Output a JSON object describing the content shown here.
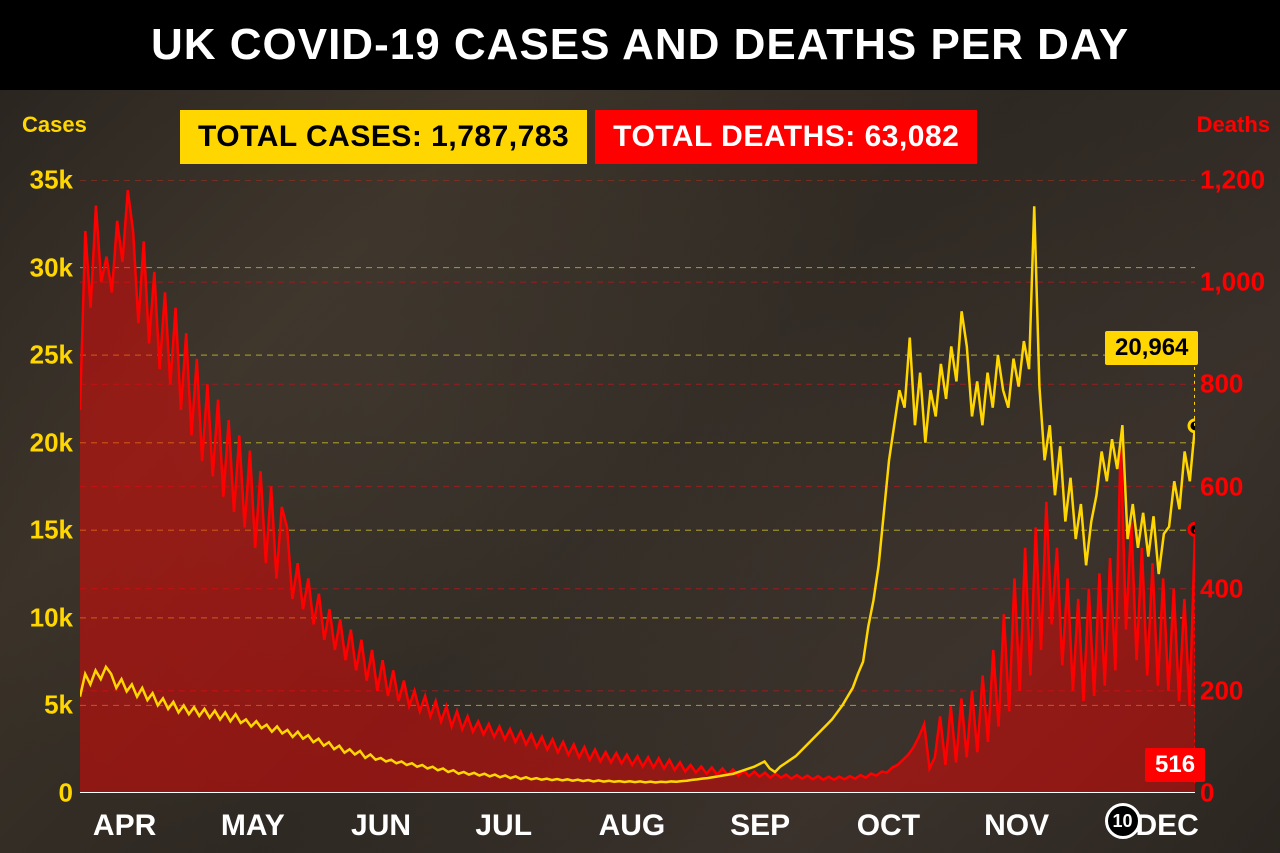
{
  "title": "UK COVID-19 CASES AND DEATHS PER DAY",
  "badges": {
    "cases_label": "TOTAL CASES: 1,787,783",
    "deaths_label": "TOTAL DEATHS: 63,082"
  },
  "axis_labels": {
    "left": "Cases",
    "right": "Deaths"
  },
  "callouts": {
    "cases": {
      "value": "20,964",
      "y_cases": 20964
    },
    "deaths": {
      "value": "516",
      "y_deaths": 516
    }
  },
  "date_marker": "10",
  "chart": {
    "type": "dual-axis-line",
    "background_color": "#2e2822",
    "title_fontsize": 44,
    "x_months": [
      "APR",
      "MAY",
      "JUN",
      "JUL",
      "AUG",
      "SEP",
      "OCT",
      "NOV",
      "DEC"
    ],
    "x_month_positions": [
      0.04,
      0.155,
      0.27,
      0.38,
      0.495,
      0.61,
      0.725,
      0.84,
      0.975
    ],
    "left_axis": {
      "color": "#ffd600",
      "ylim": [
        0,
        35000
      ],
      "ticks": [
        0,
        5000,
        10000,
        15000,
        20000,
        25000,
        30000,
        35000
      ],
      "tick_labels": [
        "0",
        "5k",
        "10k",
        "15k",
        "20k",
        "25k",
        "30k",
        "35k"
      ],
      "grid_color": "#9a8f2a",
      "grid_dash": "6,5"
    },
    "right_axis": {
      "color": "#ff0000",
      "ylim": [
        0,
        1200
      ],
      "ticks": [
        0,
        200,
        400,
        600,
        800,
        1000,
        1200
      ],
      "tick_labels": [
        "0",
        "200",
        "400",
        "600",
        "800",
        "1,000",
        "1,200"
      ],
      "grid_color": "#8a2020",
      "grid_dash": "6,5"
    },
    "cases_series": {
      "color": "#ffd600",
      "line_width": 2.5,
      "values": [
        5500,
        6800,
        6200,
        7000,
        6500,
        7200,
        6800,
        6000,
        6500,
        5800,
        6200,
        5500,
        6000,
        5300,
        5700,
        5000,
        5400,
        4800,
        5200,
        4600,
        5000,
        4500,
        4900,
        4400,
        4800,
        4300,
        4700,
        4200,
        4600,
        4100,
        4500,
        4000,
        4200,
        3800,
        4100,
        3700,
        3900,
        3500,
        3800,
        3400,
        3600,
        3200,
        3500,
        3100,
        3300,
        2900,
        3100,
        2700,
        2900,
        2500,
        2700,
        2300,
        2500,
        2200,
        2400,
        2000,
        2200,
        1900,
        2000,
        1800,
        1900,
        1700,
        1800,
        1600,
        1700,
        1500,
        1600,
        1400,
        1500,
        1300,
        1400,
        1200,
        1300,
        1100,
        1200,
        1050,
        1150,
        1000,
        1100,
        950,
        1050,
        900,
        1000,
        850,
        950,
        800,
        900,
        780,
        850,
        760,
        820,
        740,
        800,
        720,
        780,
        700,
        760,
        680,
        740,
        660,
        720,
        650,
        700,
        640,
        680,
        630,
        670,
        620,
        660,
        610,
        650,
        600,
        640,
        620,
        660,
        640,
        680,
        700,
        750,
        780,
        820,
        850,
        900,
        950,
        1000,
        1050,
        1100,
        1200,
        1300,
        1400,
        1500,
        1650,
        1800,
        1400,
        1200,
        1500,
        1700,
        1900,
        2100,
        2400,
        2700,
        3000,
        3300,
        3600,
        3900,
        4200,
        4600,
        5000,
        5500,
        6000,
        6800,
        7500,
        9500,
        11000,
        13000,
        16000,
        19000,
        21000,
        23000,
        22000,
        26000,
        21000,
        24000,
        20000,
        23000,
        21500,
        24500,
        22500,
        25500,
        23500,
        27500,
        25500,
        21500,
        23500,
        21000,
        24000,
        22000,
        25000,
        23000,
        22000,
        24800,
        23200,
        25800,
        24200,
        33500,
        23200,
        19000,
        21000,
        17000,
        19800,
        15500,
        18000,
        14500,
        16500,
        13000,
        15500,
        17000,
        19500,
        17800,
        20200,
        18500,
        21000,
        14500,
        16500,
        14000,
        16000,
        13500,
        15800,
        12500,
        14800,
        15200,
        17800,
        16200,
        19500,
        17800,
        20964
      ]
    },
    "deaths_series": {
      "color": "#ff0000",
      "fill": "rgba(255,0,0,0.45)",
      "line_width": 2.5,
      "values": [
        750,
        1100,
        950,
        1150,
        1000,
        1050,
        980,
        1120,
        1040,
        1180,
        1100,
        920,
        1080,
        880,
        1020,
        830,
        980,
        800,
        950,
        750,
        900,
        700,
        850,
        650,
        800,
        620,
        770,
        580,
        730,
        550,
        700,
        520,
        670,
        480,
        630,
        450,
        600,
        420,
        560,
        520,
        380,
        450,
        360,
        420,
        330,
        390,
        300,
        360,
        280,
        340,
        260,
        320,
        240,
        300,
        220,
        280,
        200,
        260,
        190,
        240,
        180,
        220,
        170,
        200,
        160,
        190,
        150,
        180,
        140,
        170,
        130,
        160,
        125,
        150,
        120,
        140,
        115,
        135,
        110,
        130,
        105,
        125,
        100,
        120,
        95,
        115,
        90,
        110,
        85,
        105,
        80,
        100,
        75,
        95,
        70,
        90,
        65,
        85,
        62,
        80,
        60,
        78,
        58,
        75,
        55,
        72,
        52,
        70,
        50,
        68,
        48,
        65,
        45,
        60,
        42,
        55,
        40,
        52,
        38,
        50,
        36,
        48,
        35,
        46,
        34,
        44,
        33,
        42,
        32,
        40,
        30,
        38,
        30,
        36,
        28,
        35,
        28,
        34,
        27,
        33,
        26,
        32,
        26,
        32,
        27,
        33,
        28,
        35,
        30,
        38,
        34,
        42,
        40,
        50,
        55,
        65,
        75,
        90,
        110,
        135,
        48,
        70,
        150,
        55,
        170,
        60,
        185,
        70,
        200,
        80,
        230,
        100,
        280,
        130,
        350,
        160,
        420,
        200,
        480,
        230,
        520,
        280,
        570,
        330,
        480,
        250,
        420,
        200,
        380,
        180,
        400,
        190,
        430,
        210,
        460,
        240,
        690,
        320,
        530,
        260,
        480,
        230,
        450,
        210,
        420,
        200,
        400,
        180,
        380,
        170,
        516
      ]
    }
  },
  "colors": {
    "black": "#000000",
    "white": "#ffffff",
    "cases": "#ffd600",
    "deaths": "#ff0000"
  }
}
